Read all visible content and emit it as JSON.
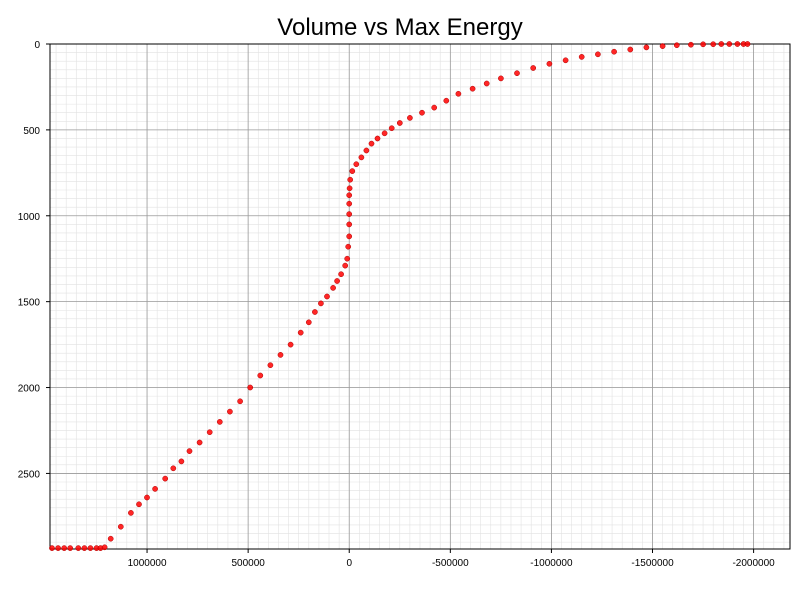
{
  "chart_data": {
    "type": "scatter",
    "title": "Volume vs Max Energy",
    "xlabel": "",
    "ylabel": "",
    "x_reversed": true,
    "y_reversed": true,
    "xlim": [
      1480000,
      -2180000
    ],
    "ylim": [
      0,
      2940
    ],
    "x_ticks": [
      1000000,
      500000,
      0,
      -500000,
      -1000000,
      -1500000,
      -2000000
    ],
    "x_tick_labels": [
      "1000000",
      "500000",
      "0",
      "-500000",
      "-1000000",
      "-1500000",
      "-2000000"
    ],
    "y_ticks": [
      0,
      500,
      1000,
      1500,
      2000,
      2500
    ],
    "y_tick_labels": [
      "0",
      "500",
      "1000",
      "1500",
      "2000",
      "2500"
    ],
    "grid": true,
    "legend": "none",
    "marker_color": "#ff0000",
    "series": [
      {
        "values_xy": [
          [
            1470000,
            2935
          ],
          [
            1440000,
            2935
          ],
          [
            1410000,
            2935
          ],
          [
            1380000,
            2935
          ],
          [
            1340000,
            2935
          ],
          [
            1310000,
            2935
          ],
          [
            1280000,
            2935
          ],
          [
            1250000,
            2935
          ],
          [
            1230000,
            2935
          ],
          [
            1210000,
            2930
          ],
          [
            1180000,
            2880
          ],
          [
            1130000,
            2810
          ],
          [
            1080000,
            2730
          ],
          [
            1040000,
            2680
          ],
          [
            1000000,
            2640
          ],
          [
            960000,
            2590
          ],
          [
            910000,
            2530
          ],
          [
            870000,
            2470
          ],
          [
            830000,
            2430
          ],
          [
            790000,
            2370
          ],
          [
            740000,
            2320
          ],
          [
            690000,
            2260
          ],
          [
            640000,
            2200
          ],
          [
            590000,
            2140
          ],
          [
            540000,
            2080
          ],
          [
            490000,
            2000
          ],
          [
            440000,
            1930
          ],
          [
            390000,
            1870
          ],
          [
            340000,
            1810
          ],
          [
            290000,
            1750
          ],
          [
            240000,
            1680
          ],
          [
            200000,
            1620
          ],
          [
            170000,
            1560
          ],
          [
            140000,
            1510
          ],
          [
            110000,
            1470
          ],
          [
            80000,
            1420
          ],
          [
            60000,
            1380
          ],
          [
            40000,
            1340
          ],
          [
            20000,
            1290
          ],
          [
            10000,
            1250
          ],
          [
            5000,
            1180
          ],
          [
            0,
            1120
          ],
          [
            0,
            1050
          ],
          [
            0,
            990
          ],
          [
            0,
            930
          ],
          [
            0,
            880
          ],
          [
            -2000,
            840
          ],
          [
            -5000,
            790
          ],
          [
            -15000,
            740
          ],
          [
            -35000,
            700
          ],
          [
            -60000,
            660
          ],
          [
            -85000,
            620
          ],
          [
            -110000,
            580
          ],
          [
            -140000,
            550
          ],
          [
            -175000,
            520
          ],
          [
            -210000,
            490
          ],
          [
            -250000,
            460
          ],
          [
            -300000,
            430
          ],
          [
            -360000,
            400
          ],
          [
            -420000,
            370
          ],
          [
            -480000,
            330
          ],
          [
            -540000,
            290
          ],
          [
            -610000,
            260
          ],
          [
            -680000,
            230
          ],
          [
            -750000,
            200
          ],
          [
            -830000,
            170
          ],
          [
            -910000,
            140
          ],
          [
            -990000,
            115
          ],
          [
            -1070000,
            95
          ],
          [
            -1150000,
            75
          ],
          [
            -1230000,
            60
          ],
          [
            -1310000,
            45
          ],
          [
            -1390000,
            32
          ],
          [
            -1470000,
            20
          ],
          [
            -1550000,
            12
          ],
          [
            -1620000,
            7
          ],
          [
            -1690000,
            4
          ],
          [
            -1750000,
            2
          ],
          [
            -1800000,
            1
          ],
          [
            -1840000,
            0
          ],
          [
            -1880000,
            0
          ],
          [
            -1920000,
            0
          ],
          [
            -1950000,
            0
          ],
          [
            -1970000,
            0
          ]
        ]
      }
    ]
  }
}
